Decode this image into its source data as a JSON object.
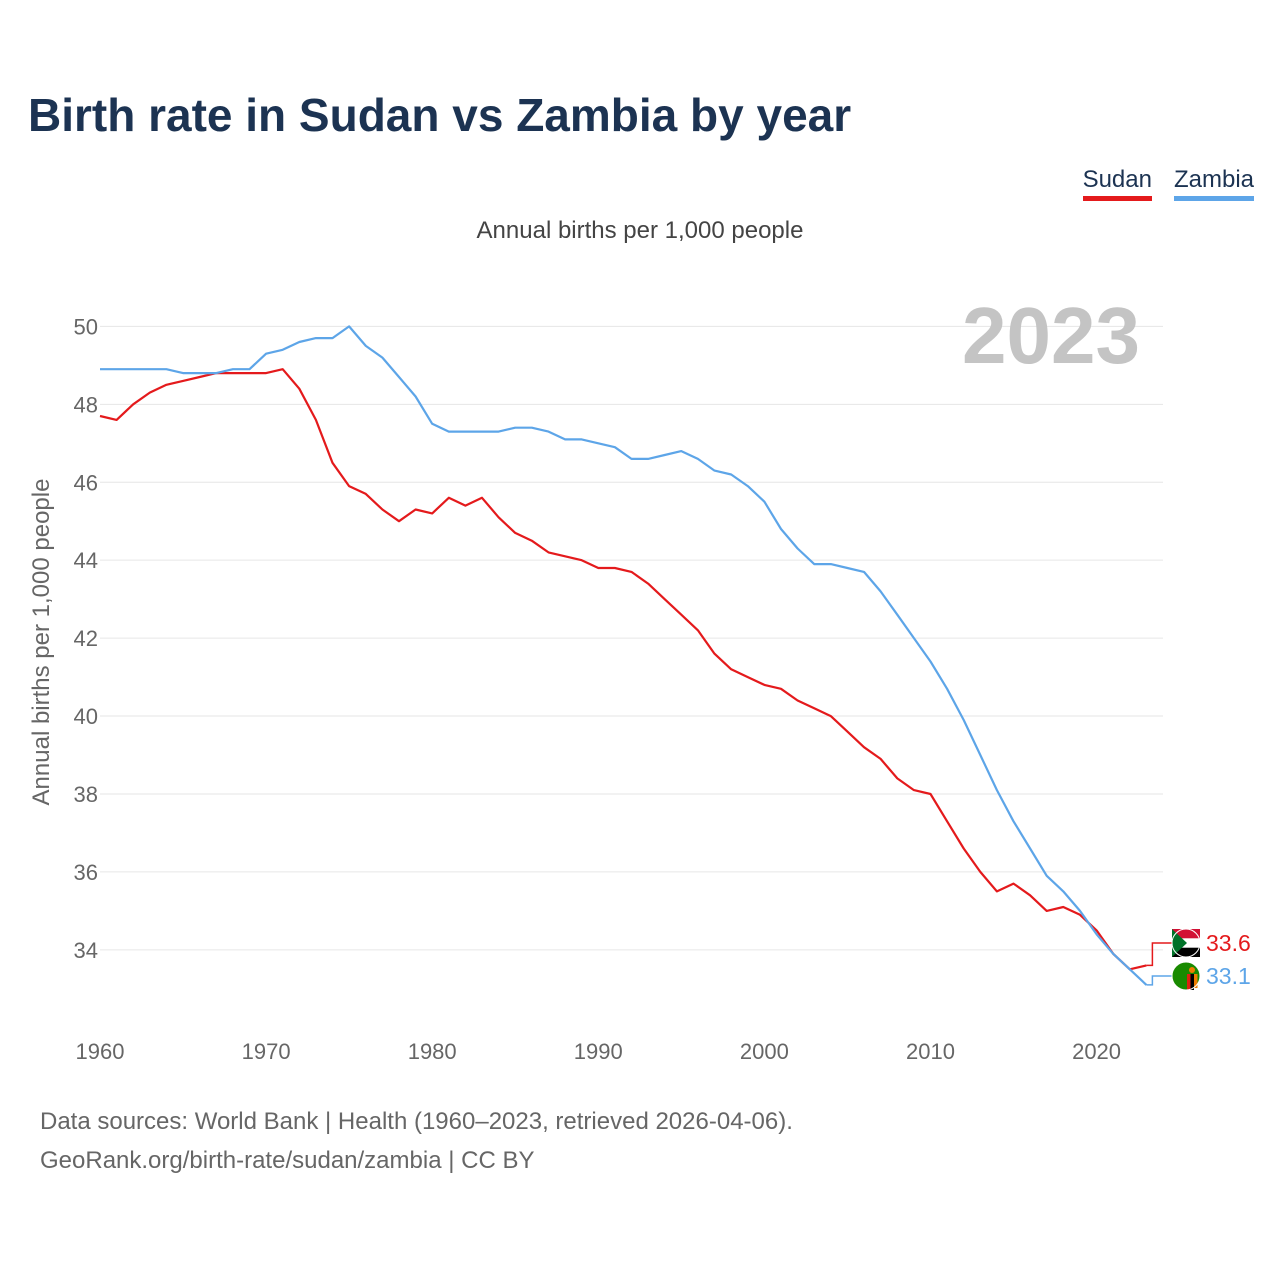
{
  "title": "Birth rate in Sudan vs Zambia by year",
  "subtitle": "Annual births per 1,000 people",
  "year_label": "2023",
  "legend": [
    {
      "name": "Sudan",
      "color": "#e41a1c"
    },
    {
      "name": "Zambia",
      "color": "#5da5e8"
    }
  ],
  "footer": {
    "line1": "Data sources: World Bank | Health (1960–2023, retrieved 2026-04-06).",
    "line2": "GeoRank.org/birth-rate/sudan/zambia | CC BY"
  },
  "chart_data": {
    "type": "line",
    "title": "Birth rate in Sudan vs Zambia by year",
    "xlabel": "",
    "ylabel": "Annual births per 1,000 people",
    "xlim": [
      1960,
      2024
    ],
    "ylim": [
      32.2,
      50.6
    ],
    "xticks": [
      1960,
      1970,
      1980,
      1990,
      2000,
      2010,
      2020
    ],
    "yticks": [
      34,
      36,
      38,
      40,
      42,
      44,
      46,
      48,
      50
    ],
    "x": [
      1960,
      1961,
      1962,
      1963,
      1964,
      1965,
      1966,
      1967,
      1968,
      1969,
      1970,
      1971,
      1972,
      1973,
      1974,
      1975,
      1976,
      1977,
      1978,
      1979,
      1980,
      1981,
      1982,
      1983,
      1984,
      1985,
      1986,
      1987,
      1988,
      1989,
      1990,
      1991,
      1992,
      1993,
      1994,
      1995,
      1996,
      1997,
      1998,
      1999,
      2000,
      2001,
      2002,
      2003,
      2004,
      2005,
      2006,
      2007,
      2008,
      2009,
      2010,
      2011,
      2012,
      2013,
      2014,
      2015,
      2016,
      2017,
      2018,
      2019,
      2020,
      2021,
      2022,
      2023
    ],
    "series": [
      {
        "name": "Sudan",
        "color": "#e41a1c",
        "end_label": "33.6",
        "values": [
          47.7,
          47.6,
          48.0,
          48.3,
          48.5,
          48.6,
          48.7,
          48.8,
          48.8,
          48.8,
          48.8,
          48.9,
          48.4,
          47.6,
          46.5,
          45.9,
          45.7,
          45.3,
          45.0,
          45.3,
          45.2,
          45.6,
          45.4,
          45.6,
          45.1,
          44.7,
          44.5,
          44.2,
          44.1,
          44.0,
          43.8,
          43.8,
          43.7,
          43.4,
          43.0,
          42.6,
          42.2,
          41.6,
          41.2,
          41.0,
          40.8,
          40.7,
          40.4,
          40.2,
          40.0,
          39.6,
          39.2,
          38.9,
          38.4,
          38.1,
          38.0,
          37.3,
          36.6,
          36.0,
          35.5,
          35.7,
          35.4,
          35.0,
          35.1,
          34.9,
          34.5,
          33.9,
          33.5,
          33.6
        ]
      },
      {
        "name": "Zambia",
        "color": "#5da5e8",
        "end_label": "33.1",
        "values": [
          48.9,
          48.9,
          48.9,
          48.9,
          48.9,
          48.8,
          48.8,
          48.8,
          48.9,
          48.9,
          49.3,
          49.4,
          49.6,
          49.7,
          49.7,
          50.0,
          49.5,
          49.2,
          48.7,
          48.2,
          47.5,
          47.3,
          47.3,
          47.3,
          47.3,
          47.4,
          47.4,
          47.3,
          47.1,
          47.1,
          47.0,
          46.9,
          46.6,
          46.6,
          46.7,
          46.8,
          46.6,
          46.3,
          46.2,
          45.9,
          45.5,
          44.8,
          44.3,
          43.9,
          43.9,
          43.8,
          43.7,
          43.2,
          42.6,
          42.0,
          41.4,
          40.7,
          39.9,
          39.0,
          38.1,
          37.3,
          36.6,
          35.9,
          35.5,
          35.0,
          34.4,
          33.9,
          33.5,
          33.1
        ]
      }
    ]
  }
}
